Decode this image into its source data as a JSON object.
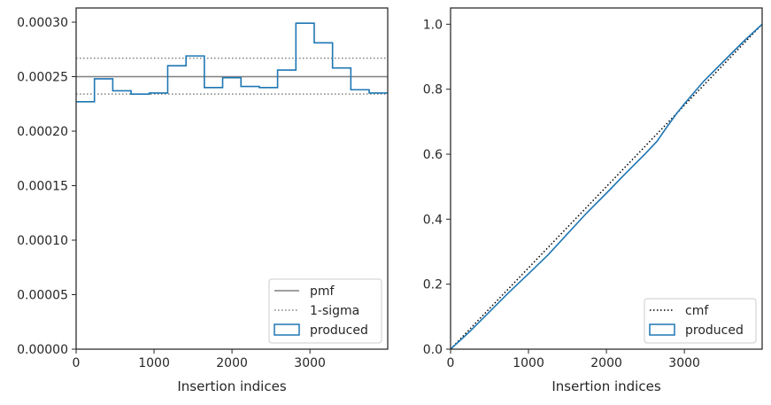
{
  "chart_data": [
    {
      "type": "histogram-step",
      "xlabel": "Insertion indices",
      "ylabel": "",
      "xlim": [
        0,
        3998
      ],
      "ylim": [
        0,
        0.000313
      ],
      "xticks": [
        0,
        1000,
        2000,
        3000
      ],
      "xtick_labels": [
        "0",
        "1000",
        "2000",
        "3000"
      ],
      "yticks": [
        0,
        5e-05,
        0.0001,
        0.00015,
        0.0002,
        0.00025,
        0.0003
      ],
      "ytick_labels": [
        "0.00000",
        "0.00005",
        "0.00010",
        "0.00015",
        "0.00020",
        "0.00025",
        "0.00030"
      ],
      "hlines": [
        {
          "name": "pmf",
          "y": 0.00025,
          "style": "solid",
          "color": "#808080"
        },
        {
          "name": "1-sigma",
          "y": 0.000267,
          "style": "dotted",
          "color": "#808080"
        },
        {
          "name": "1-sigma",
          "y": 0.000234,
          "style": "dotted",
          "color": "#808080"
        }
      ],
      "series": [
        {
          "name": "produced",
          "color": "#1f77b4",
          "bin_edges": [
            0,
            235,
            470,
            705,
            940,
            1175,
            1410,
            1645,
            1880,
            2115,
            2350,
            2585,
            2820,
            3055,
            3290,
            3525,
            3760,
            3998
          ],
          "values": [
            0.000227,
            0.000248,
            0.000237,
            0.000234,
            0.000235,
            0.00026,
            0.000269,
            0.00024,
            0.000249,
            0.000241,
            0.00024,
            0.000256,
            0.000299,
            0.000281,
            0.000258,
            0.000238,
            0.000235
          ]
        }
      ],
      "legend": {
        "position": "lower-right",
        "entries": [
          {
            "label": "pmf",
            "kind": "solid-line",
            "color": "#808080"
          },
          {
            "label": "1-sigma",
            "kind": "dotted-line",
            "color": "#808080"
          },
          {
            "label": "produced",
            "kind": "box",
            "color": "#1f77b4"
          }
        ]
      }
    },
    {
      "type": "line",
      "xlabel": "Insertion indices",
      "ylabel": "",
      "xlim": [
        0,
        3998
      ],
      "ylim": [
        0,
        1.05
      ],
      "xticks": [
        0,
        1000,
        2000,
        3000
      ],
      "xtick_labels": [
        "0",
        "1000",
        "2000",
        "3000"
      ],
      "yticks": [
        0,
        0.2,
        0.4,
        0.6,
        0.8,
        1.0
      ],
      "ytick_labels": [
        "0.0",
        "0.2",
        "0.4",
        "0.6",
        "0.8",
        "1.0"
      ],
      "series": [
        {
          "name": "cmf",
          "style": "dotted",
          "color": "#000000",
          "x": [
            0,
            3998
          ],
          "y": [
            0,
            1.0
          ]
        },
        {
          "name": "produced",
          "style": "solid",
          "color": "#1f77b4",
          "x": [
            0,
            250,
            500,
            750,
            1000,
            1250,
            1500,
            1750,
            2000,
            2250,
            2500,
            2650,
            2750,
            2900,
            3000,
            3250,
            3500,
            3750,
            3998
          ],
          "y": [
            0,
            0.055,
            0.115,
            0.175,
            0.232,
            0.29,
            0.355,
            0.42,
            0.48,
            0.542,
            0.602,
            0.64,
            0.675,
            0.725,
            0.755,
            0.825,
            0.885,
            0.945,
            1.0
          ]
        }
      ],
      "legend": {
        "position": "lower-right",
        "entries": [
          {
            "label": "cmf",
            "kind": "dotted-line",
            "color": "#000000"
          },
          {
            "label": "produced",
            "kind": "box",
            "color": "#1f77b4"
          }
        ]
      }
    }
  ]
}
